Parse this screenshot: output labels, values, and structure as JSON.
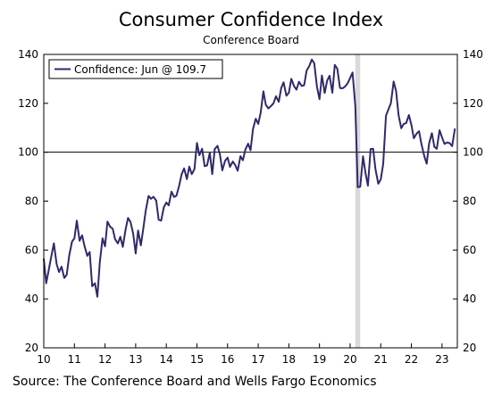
{
  "chart_data": {
    "type": "line",
    "title": "Consumer Confidence Index",
    "subtitle": "Conference Board",
    "source": "Source: The Conference Board and Wells Fargo Economics",
    "legend_label": "Confidence: Jun @ 109.7",
    "legend_placement": "top-left",
    "line_color": "#2e2a6b",
    "shade_color": "#d9d9d9",
    "ylim": [
      20,
      140
    ],
    "yticks": [
      20,
      40,
      60,
      80,
      100,
      120,
      140
    ],
    "xlim": [
      2010.0,
      2023.5
    ],
    "xticks": [
      {
        "value": 2010,
        "label": "10"
      },
      {
        "value": 2011,
        "label": "11"
      },
      {
        "value": 2012,
        "label": "12"
      },
      {
        "value": 2013,
        "label": "13"
      },
      {
        "value": 2014,
        "label": "14"
      },
      {
        "value": 2015,
        "label": "15"
      },
      {
        "value": 2016,
        "label": "16"
      },
      {
        "value": 2017,
        "label": "17"
      },
      {
        "value": 2018,
        "label": "18"
      },
      {
        "value": 2019,
        "label": "19"
      },
      {
        "value": 2020,
        "label": "20"
      },
      {
        "value": 2021,
        "label": "21"
      },
      {
        "value": 2022,
        "label": "22"
      },
      {
        "value": 2023,
        "label": "23"
      }
    ],
    "reference_line": 100,
    "recession": [
      2020.17,
      2020.33
    ],
    "series": [
      {
        "name": "Confidence",
        "points": [
          [
            2010.0,
            56.5
          ],
          [
            2010.08,
            46.4
          ],
          [
            2010.17,
            52.3
          ],
          [
            2010.25,
            57.7
          ],
          [
            2010.33,
            62.7
          ],
          [
            2010.42,
            54.3
          ],
          [
            2010.5,
            51.0
          ],
          [
            2010.58,
            53.2
          ],
          [
            2010.67,
            48.6
          ],
          [
            2010.75,
            49.9
          ],
          [
            2010.83,
            57.8
          ],
          [
            2010.92,
            63.4
          ],
          [
            2011.0,
            64.8
          ],
          [
            2011.08,
            72.0
          ],
          [
            2011.17,
            63.8
          ],
          [
            2011.25,
            66.0
          ],
          [
            2011.33,
            61.7
          ],
          [
            2011.42,
            57.6
          ],
          [
            2011.5,
            59.2
          ],
          [
            2011.58,
            45.2
          ],
          [
            2011.67,
            46.4
          ],
          [
            2011.75,
            40.9
          ],
          [
            2011.83,
            55.2
          ],
          [
            2011.92,
            64.8
          ],
          [
            2012.0,
            61.5
          ],
          [
            2012.08,
            71.6
          ],
          [
            2012.17,
            69.5
          ],
          [
            2012.25,
            68.7
          ],
          [
            2012.33,
            64.4
          ],
          [
            2012.42,
            62.7
          ],
          [
            2012.5,
            65.4
          ],
          [
            2012.58,
            61.3
          ],
          [
            2012.67,
            68.4
          ],
          [
            2012.75,
            73.1
          ],
          [
            2012.83,
            71.5
          ],
          [
            2012.92,
            66.7
          ],
          [
            2013.0,
            58.6
          ],
          [
            2013.08,
            68.0
          ],
          [
            2013.17,
            61.9
          ],
          [
            2013.25,
            69.0
          ],
          [
            2013.33,
            76.2
          ],
          [
            2013.42,
            82.1
          ],
          [
            2013.5,
            81.0
          ],
          [
            2013.58,
            81.8
          ],
          [
            2013.67,
            80.2
          ],
          [
            2013.75,
            72.4
          ],
          [
            2013.83,
            72.0
          ],
          [
            2013.92,
            77.5
          ],
          [
            2014.0,
            79.4
          ],
          [
            2014.08,
            78.3
          ],
          [
            2014.17,
            83.9
          ],
          [
            2014.25,
            81.7
          ],
          [
            2014.33,
            82.2
          ],
          [
            2014.42,
            86.4
          ],
          [
            2014.5,
            90.9
          ],
          [
            2014.58,
            93.4
          ],
          [
            2014.67,
            89.0
          ],
          [
            2014.75,
            94.1
          ],
          [
            2014.83,
            91.0
          ],
          [
            2014.92,
            93.1
          ],
          [
            2015.0,
            103.8
          ],
          [
            2015.08,
            98.8
          ],
          [
            2015.17,
            101.4
          ],
          [
            2015.25,
            94.3
          ],
          [
            2015.33,
            94.6
          ],
          [
            2015.42,
            99.8
          ],
          [
            2015.5,
            91.0
          ],
          [
            2015.58,
            101.3
          ],
          [
            2015.67,
            102.6
          ],
          [
            2015.75,
            99.1
          ],
          [
            2015.83,
            92.6
          ],
          [
            2015.92,
            96.5
          ],
          [
            2016.0,
            97.8
          ],
          [
            2016.08,
            94.0
          ],
          [
            2016.17,
            96.2
          ],
          [
            2016.25,
            94.7
          ],
          [
            2016.33,
            92.4
          ],
          [
            2016.42,
            98.4
          ],
          [
            2016.5,
            96.7
          ],
          [
            2016.58,
            101.1
          ],
          [
            2016.67,
            103.5
          ],
          [
            2016.75,
            100.8
          ],
          [
            2016.83,
            109.4
          ],
          [
            2016.92,
            113.7
          ],
          [
            2017.0,
            111.6
          ],
          [
            2017.08,
            116.1
          ],
          [
            2017.17,
            124.9
          ],
          [
            2017.25,
            119.4
          ],
          [
            2017.33,
            117.9
          ],
          [
            2017.42,
            118.9
          ],
          [
            2017.5,
            120.0
          ],
          [
            2017.58,
            122.9
          ],
          [
            2017.67,
            120.6
          ],
          [
            2017.75,
            126.2
          ],
          [
            2017.83,
            128.6
          ],
          [
            2017.92,
            123.1
          ],
          [
            2018.0,
            124.3
          ],
          [
            2018.08,
            130.0
          ],
          [
            2018.17,
            127.0
          ],
          [
            2018.25,
            125.6
          ],
          [
            2018.33,
            128.8
          ],
          [
            2018.42,
            127.1
          ],
          [
            2018.5,
            127.4
          ],
          [
            2018.58,
            133.4
          ],
          [
            2018.67,
            135.3
          ],
          [
            2018.75,
            137.9
          ],
          [
            2018.83,
            136.4
          ],
          [
            2018.92,
            126.6
          ],
          [
            2019.0,
            121.7
          ],
          [
            2019.08,
            131.4
          ],
          [
            2019.17,
            124.2
          ],
          [
            2019.25,
            129.2
          ],
          [
            2019.33,
            131.3
          ],
          [
            2019.42,
            124.3
          ],
          [
            2019.5,
            135.7
          ],
          [
            2019.58,
            134.2
          ],
          [
            2019.67,
            126.3
          ],
          [
            2019.75,
            126.1
          ],
          [
            2019.83,
            126.8
          ],
          [
            2019.92,
            128.2
          ],
          [
            2020.0,
            130.4
          ],
          [
            2020.08,
            132.6
          ],
          [
            2020.17,
            118.8
          ],
          [
            2020.25,
            85.7
          ],
          [
            2020.33,
            85.9
          ],
          [
            2020.42,
            98.3
          ],
          [
            2020.5,
            91.7
          ],
          [
            2020.58,
            86.3
          ],
          [
            2020.67,
            101.3
          ],
          [
            2020.75,
            101.4
          ],
          [
            2020.83,
            92.9
          ],
          [
            2020.92,
            87.1
          ],
          [
            2021.0,
            88.9
          ],
          [
            2021.08,
            95.2
          ],
          [
            2021.17,
            114.9
          ],
          [
            2021.25,
            117.5
          ],
          [
            2021.33,
            120.0
          ],
          [
            2021.42,
            128.9
          ],
          [
            2021.5,
            125.1
          ],
          [
            2021.58,
            115.2
          ],
          [
            2021.67,
            109.8
          ],
          [
            2021.75,
            111.6
          ],
          [
            2021.83,
            111.9
          ],
          [
            2021.92,
            115.2
          ],
          [
            2022.0,
            111.1
          ],
          [
            2022.08,
            105.7
          ],
          [
            2022.17,
            107.6
          ],
          [
            2022.25,
            108.6
          ],
          [
            2022.33,
            103.2
          ],
          [
            2022.42,
            98.4
          ],
          [
            2022.5,
            95.3
          ],
          [
            2022.58,
            103.6
          ],
          [
            2022.67,
            107.8
          ],
          [
            2022.75,
            102.2
          ],
          [
            2022.83,
            101.4
          ],
          [
            2022.92,
            109.0
          ],
          [
            2023.0,
            106.0
          ],
          [
            2023.08,
            103.4
          ],
          [
            2023.17,
            104.0
          ],
          [
            2023.25,
            103.7
          ],
          [
            2023.33,
            102.5
          ],
          [
            2023.42,
            109.7
          ]
        ]
      }
    ]
  }
}
